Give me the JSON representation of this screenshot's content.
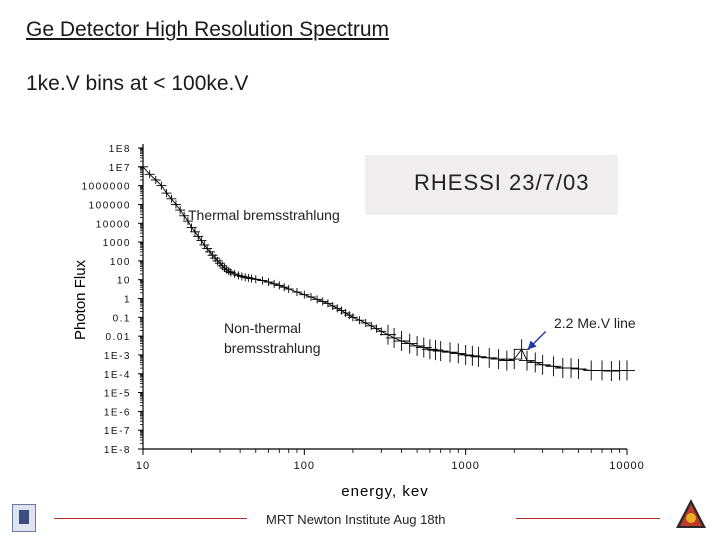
{
  "slide": {
    "title": "Ge Detector High Resolution Spectrum",
    "subtitle": "1ke.V bins at < 100ke.V",
    "inset_label": "RHESSI 23/7/03",
    "footer": "MRT Newton Institute Aug 18th"
  },
  "chart_data": {
    "type": "scatter",
    "title": "",
    "xlabel": "energy, kev",
    "ylabel": "Photon Flux",
    "x_scale": "log",
    "y_scale": "log",
    "xlim": [
      10,
      10000
    ],
    "ylim": [
      1e-08,
      100000000.0
    ],
    "x_ticks": [
      {
        "value": 10,
        "label": "10"
      },
      {
        "value": 100,
        "label": "100"
      },
      {
        "value": 1000,
        "label": "1000"
      },
      {
        "value": 10000,
        "label": "10000"
      }
    ],
    "y_ticks": [
      {
        "value": 100000000.0,
        "label": "1E8"
      },
      {
        "value": 10000000.0,
        "label": "1E7"
      },
      {
        "value": 1000000.0,
        "label": "1000000"
      },
      {
        "value": 100000.0,
        "label": "100000"
      },
      {
        "value": 10000.0,
        "label": "10000"
      },
      {
        "value": 1000.0,
        "label": "1000"
      },
      {
        "value": 100.0,
        "label": "100"
      },
      {
        "value": 10.0,
        "label": "10"
      },
      {
        "value": 1,
        "label": "1"
      },
      {
        "value": 0.1,
        "label": "0.1"
      },
      {
        "value": 0.01,
        "label": "0.01"
      },
      {
        "value": 0.001,
        "label": "1E-3"
      },
      {
        "value": 0.0001,
        "label": "1E-4"
      },
      {
        "value": 1e-05,
        "label": "1E-5"
      },
      {
        "value": 1e-06,
        "label": "1E-6"
      },
      {
        "value": 1e-07,
        "label": "1E-7"
      },
      {
        "value": 1e-08,
        "label": "1E-8"
      }
    ],
    "grid": false,
    "annotations": [
      {
        "name": "thermal-label",
        "text": "Thermal bremsstrahlung"
      },
      {
        "name": "nonthermal-label-1",
        "text": "Non-thermal"
      },
      {
        "name": "nonthermal-label-2",
        "text": "bremsstrahlung"
      },
      {
        "name": "line-label",
        "text": "2.2 Me.V line"
      }
    ],
    "arrow": {
      "target_x": 2223,
      "target_y": 0.0012,
      "color": "#1a3aa0"
    },
    "series": [
      {
        "points": [
          [
            10,
            10000000.0
          ],
          [
            11,
            4000000.0
          ],
          [
            12,
            2000000.0
          ],
          [
            13,
            1000000.0
          ],
          [
            14,
            400000.0
          ],
          [
            15,
            200000.0
          ],
          [
            16,
            100000.0
          ],
          [
            17,
            50000.0
          ],
          [
            18,
            25000.0
          ],
          [
            19,
            13000.0
          ],
          [
            20,
            6000.0
          ],
          [
            21,
            3500.0
          ],
          [
            22,
            2000.0
          ],
          [
            23,
            1200.0
          ],
          [
            24,
            700
          ],
          [
            25,
            450
          ],
          [
            26,
            300
          ],
          [
            27,
            200
          ],
          [
            28,
            140
          ],
          [
            29,
            100
          ],
          [
            30,
            75
          ],
          [
            31,
            55
          ],
          [
            32,
            42
          ],
          [
            33,
            34
          ],
          [
            34,
            28
          ],
          [
            35,
            24
          ],
          [
            37,
            20
          ],
          [
            39,
            17
          ],
          [
            41,
            15
          ],
          [
            43,
            13.5
          ],
          [
            45,
            12.5
          ],
          [
            47,
            11.5
          ],
          [
            50,
            10.5
          ],
          [
            55,
            9
          ],
          [
            60,
            7.5
          ],
          [
            65,
            6
          ],
          [
            70,
            5
          ],
          [
            75,
            4
          ],
          [
            80,
            3.2
          ],
          [
            90,
            2.2
          ],
          [
            100,
            1.6
          ],
          [
            110,
            1.2
          ],
          [
            120,
            0.9
          ],
          [
            130,
            0.7
          ],
          [
            140,
            0.55
          ],
          [
            150,
            0.4
          ],
          [
            160,
            0.3
          ],
          [
            170,
            0.23
          ],
          [
            180,
            0.17
          ],
          [
            190,
            0.13
          ],
          [
            200,
            0.1
          ],
          [
            220,
            0.07
          ],
          [
            240,
            0.05
          ],
          [
            260,
            0.035
          ],
          [
            280,
            0.025
          ],
          [
            300,
            0.018
          ],
          [
            330,
            0.012
          ],
          [
            360,
            0.008
          ],
          [
            400,
            0.0055
          ],
          [
            450,
            0.004
          ],
          [
            500,
            0.003
          ],
          [
            550,
            0.0025
          ],
          [
            600,
            0.002
          ],
          [
            650,
            0.0018
          ],
          [
            700,
            0.0016
          ],
          [
            800,
            0.0014
          ],
          [
            900,
            0.0012
          ],
          [
            1000,
            0.001
          ],
          [
            1100,
            0.0009
          ],
          [
            1200,
            0.0008
          ],
          [
            1400,
            0.0007
          ],
          [
            1600,
            0.0006
          ],
          [
            1800,
            0.0005
          ],
          [
            2000,
            0.0006
          ],
          [
            2223,
            0.002
          ],
          [
            2400,
            0.0005
          ],
          [
            2700,
            0.0004
          ],
          [
            3000,
            0.0003
          ],
          [
            3500,
            0.00025
          ],
          [
            4000,
            0.0002
          ],
          [
            4500,
            0.0002
          ],
          [
            5000,
            0.00018
          ],
          [
            6000,
            0.00015
          ],
          [
            7000,
            0.00015
          ],
          [
            8000,
            0.00014
          ],
          [
            9000,
            0.00015
          ],
          [
            10000,
            0.00015
          ]
        ]
      }
    ],
    "colors": {
      "data": "#000000",
      "axis": "#000000",
      "arrow": "#1a3aa0",
      "footer_rule": "#b03030"
    }
  }
}
